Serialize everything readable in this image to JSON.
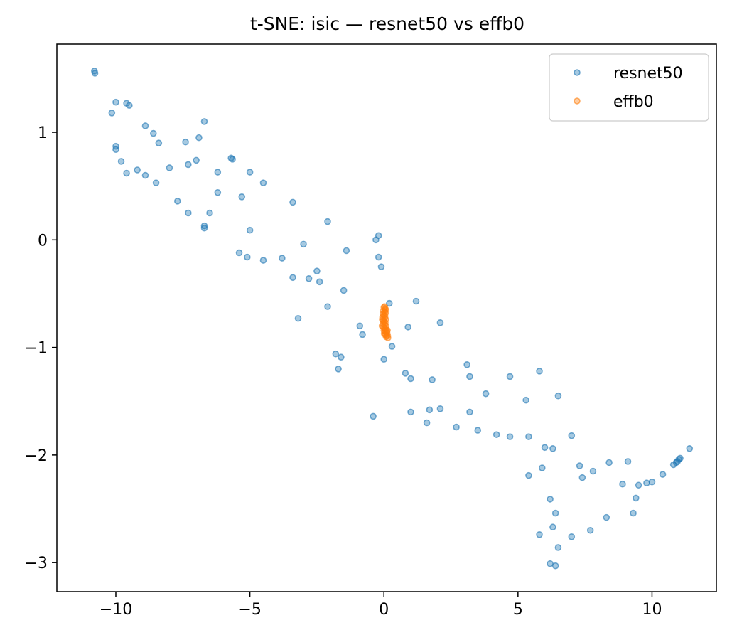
{
  "chart_data": {
    "type": "scatter",
    "title": "t-SNE: isic — resnet50 vs effb0",
    "xlabel": "",
    "ylabel": "",
    "xlim": [
      -12.2,
      12.4
    ],
    "ylim": [
      -3.27,
      1.82
    ],
    "x_ticks": [
      {
        "value": -10,
        "label": "−10"
      },
      {
        "value": -5,
        "label": "−5"
      },
      {
        "value": 0,
        "label": "0"
      },
      {
        "value": 5,
        "label": "5"
      },
      {
        "value": 10,
        "label": "10"
      }
    ],
    "y_ticks": [
      {
        "value": 1,
        "label": "1"
      },
      {
        "value": 0,
        "label": "0"
      },
      {
        "value": -1,
        "label": "−1"
      },
      {
        "value": -2,
        "label": "−2"
      },
      {
        "value": -3,
        "label": "−3"
      }
    ],
    "grid": false,
    "legend_position": "upper-right",
    "series": [
      {
        "name": "resnet50",
        "color": "#1f77b4",
        "points": [
          [
            -10.8,
            1.57
          ],
          [
            -10.78,
            1.55
          ],
          [
            -10.0,
            1.28
          ],
          [
            -10.15,
            1.18
          ],
          [
            -9.6,
            1.27
          ],
          [
            -9.5,
            1.25
          ],
          [
            -8.9,
            1.06
          ],
          [
            -8.6,
            0.99
          ],
          [
            -8.4,
            0.9
          ],
          [
            -7.4,
            0.91
          ],
          [
            -6.9,
            0.95
          ],
          [
            -6.7,
            1.1
          ],
          [
            -10.0,
            0.87
          ],
          [
            -10.0,
            0.84
          ],
          [
            -9.8,
            0.73
          ],
          [
            -9.6,
            0.62
          ],
          [
            -9.2,
            0.65
          ],
          [
            -8.9,
            0.6
          ],
          [
            -8.5,
            0.53
          ],
          [
            -8.0,
            0.67
          ],
          [
            -7.3,
            0.7
          ],
          [
            -7.0,
            0.74
          ],
          [
            -6.2,
            0.63
          ],
          [
            -5.7,
            0.76
          ],
          [
            -5.65,
            0.75
          ],
          [
            -5.0,
            0.63
          ],
          [
            -4.5,
            0.53
          ],
          [
            -6.2,
            0.44
          ],
          [
            -5.3,
            0.4
          ],
          [
            -7.7,
            0.36
          ],
          [
            -7.3,
            0.25
          ],
          [
            -6.5,
            0.25
          ],
          [
            -6.7,
            0.13
          ],
          [
            -6.7,
            0.11
          ],
          [
            -5.0,
            0.09
          ],
          [
            -3.4,
            0.35
          ],
          [
            -2.1,
            0.17
          ],
          [
            -3.0,
            -0.04
          ],
          [
            -5.4,
            -0.12
          ],
          [
            -5.1,
            -0.16
          ],
          [
            -4.5,
            -0.19
          ],
          [
            -3.8,
            -0.17
          ],
          [
            -1.4,
            -0.1
          ],
          [
            -0.3,
            0.0
          ],
          [
            -0.2,
            0.04
          ],
          [
            -0.2,
            -0.16
          ],
          [
            -0.1,
            -0.25
          ],
          [
            -2.5,
            -0.29
          ],
          [
            -3.4,
            -0.35
          ],
          [
            -2.8,
            -0.36
          ],
          [
            -2.4,
            -0.39
          ],
          [
            -1.5,
            -0.47
          ],
          [
            -2.1,
            -0.62
          ],
          [
            -3.2,
            -0.73
          ],
          [
            0.2,
            -0.59
          ],
          [
            1.2,
            -0.57
          ],
          [
            2.1,
            -0.77
          ],
          [
            0.9,
            -0.81
          ],
          [
            -0.9,
            -0.8
          ],
          [
            -0.8,
            -0.88
          ],
          [
            0.3,
            -0.99
          ],
          [
            -1.8,
            -1.06
          ],
          [
            -1.6,
            -1.09
          ],
          [
            0.0,
            -1.11
          ],
          [
            -1.7,
            -1.2
          ],
          [
            0.8,
            -1.24
          ],
          [
            1.0,
            -1.29
          ],
          [
            1.8,
            -1.3
          ],
          [
            3.1,
            -1.16
          ],
          [
            3.2,
            -1.27
          ],
          [
            4.7,
            -1.27
          ],
          [
            5.8,
            -1.22
          ],
          [
            3.8,
            -1.43
          ],
          [
            5.3,
            -1.49
          ],
          [
            6.5,
            -1.45
          ],
          [
            -0.4,
            -1.64
          ],
          [
            1.0,
            -1.6
          ],
          [
            1.7,
            -1.58
          ],
          [
            2.1,
            -1.57
          ],
          [
            3.2,
            -1.6
          ],
          [
            1.6,
            -1.7
          ],
          [
            2.7,
            -1.74
          ],
          [
            3.5,
            -1.77
          ],
          [
            4.2,
            -1.81
          ],
          [
            4.7,
            -1.83
          ],
          [
            5.4,
            -1.83
          ],
          [
            7.0,
            -1.82
          ],
          [
            6.0,
            -1.93
          ],
          [
            6.3,
            -1.94
          ],
          [
            5.9,
            -2.12
          ],
          [
            5.4,
            -2.19
          ],
          [
            7.3,
            -2.1
          ],
          [
            7.8,
            -2.15
          ],
          [
            7.4,
            -2.21
          ],
          [
            8.4,
            -2.07
          ],
          [
            9.1,
            -2.06
          ],
          [
            8.9,
            -2.27
          ],
          [
            9.5,
            -2.28
          ],
          [
            9.8,
            -2.26
          ],
          [
            10.0,
            -2.25
          ],
          [
            10.4,
            -2.18
          ],
          [
            10.8,
            -2.09
          ],
          [
            10.9,
            -2.07
          ],
          [
            10.95,
            -2.06
          ],
          [
            11.0,
            -2.04
          ],
          [
            11.05,
            -2.03
          ],
          [
            11.4,
            -1.94
          ],
          [
            9.4,
            -2.4
          ],
          [
            6.2,
            -2.41
          ],
          [
            6.4,
            -2.54
          ],
          [
            9.3,
            -2.54
          ],
          [
            8.3,
            -2.58
          ],
          [
            6.3,
            -2.67
          ],
          [
            5.8,
            -2.74
          ],
          [
            7.0,
            -2.76
          ],
          [
            7.7,
            -2.7
          ],
          [
            6.5,
            -2.86
          ],
          [
            6.2,
            -3.01
          ],
          [
            6.4,
            -3.03
          ]
        ]
      },
      {
        "name": "effb0",
        "color": "#ff7f0e",
        "points": [
          [
            0.0,
            -0.63
          ],
          [
            0.02,
            -0.62
          ],
          [
            0.05,
            -0.64
          ],
          [
            -0.02,
            -0.66
          ],
          [
            0.03,
            -0.67
          ],
          [
            0.06,
            -0.68
          ],
          [
            -0.04,
            -0.69
          ],
          [
            0.0,
            -0.7
          ],
          [
            0.04,
            -0.71
          ],
          [
            -0.05,
            -0.72
          ],
          [
            0.02,
            -0.73
          ],
          [
            0.07,
            -0.74
          ],
          [
            -0.03,
            -0.75
          ],
          [
            0.01,
            -0.76
          ],
          [
            0.05,
            -0.77
          ],
          [
            -0.04,
            -0.78
          ],
          [
            0.03,
            -0.79
          ],
          [
            0.08,
            -0.8
          ],
          [
            -0.02,
            -0.81
          ],
          [
            0.02,
            -0.82
          ],
          [
            0.06,
            -0.83
          ],
          [
            0.0,
            -0.84
          ],
          [
            0.04,
            -0.85
          ],
          [
            0.09,
            -0.86
          ],
          [
            0.01,
            -0.87
          ],
          [
            0.05,
            -0.88
          ],
          [
            0.1,
            -0.89
          ],
          [
            0.12,
            -0.87
          ],
          [
            0.14,
            -0.89
          ],
          [
            0.15,
            -0.91
          ],
          [
            0.08,
            -0.9
          ],
          [
            0.11,
            -0.85
          ],
          [
            0.13,
            -0.84
          ],
          [
            -0.06,
            -0.74
          ],
          [
            -0.07,
            -0.8
          ],
          [
            0.06,
            -0.65
          ]
        ]
      }
    ]
  }
}
